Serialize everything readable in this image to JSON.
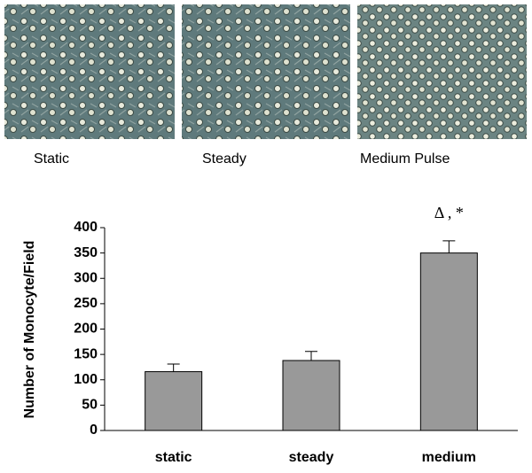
{
  "panel_labels": [
    "Static",
    "Steady",
    "Medium Pulse"
  ],
  "chart_data": {
    "type": "bar",
    "ylabel": "Number of Monocyte/Field",
    "categories": [
      "static",
      "steady",
      "medium"
    ],
    "values": [
      116,
      138,
      350
    ],
    "errors": [
      15,
      18,
      24
    ],
    "color": "#999999",
    "annotations": [
      {
        "category": 2,
        "text": "Δ , *"
      }
    ],
    "ylim": [
      0,
      400
    ],
    "yticks": [
      0,
      50,
      100,
      150,
      200,
      250,
      300,
      350,
      400
    ],
    "grid": false
  }
}
